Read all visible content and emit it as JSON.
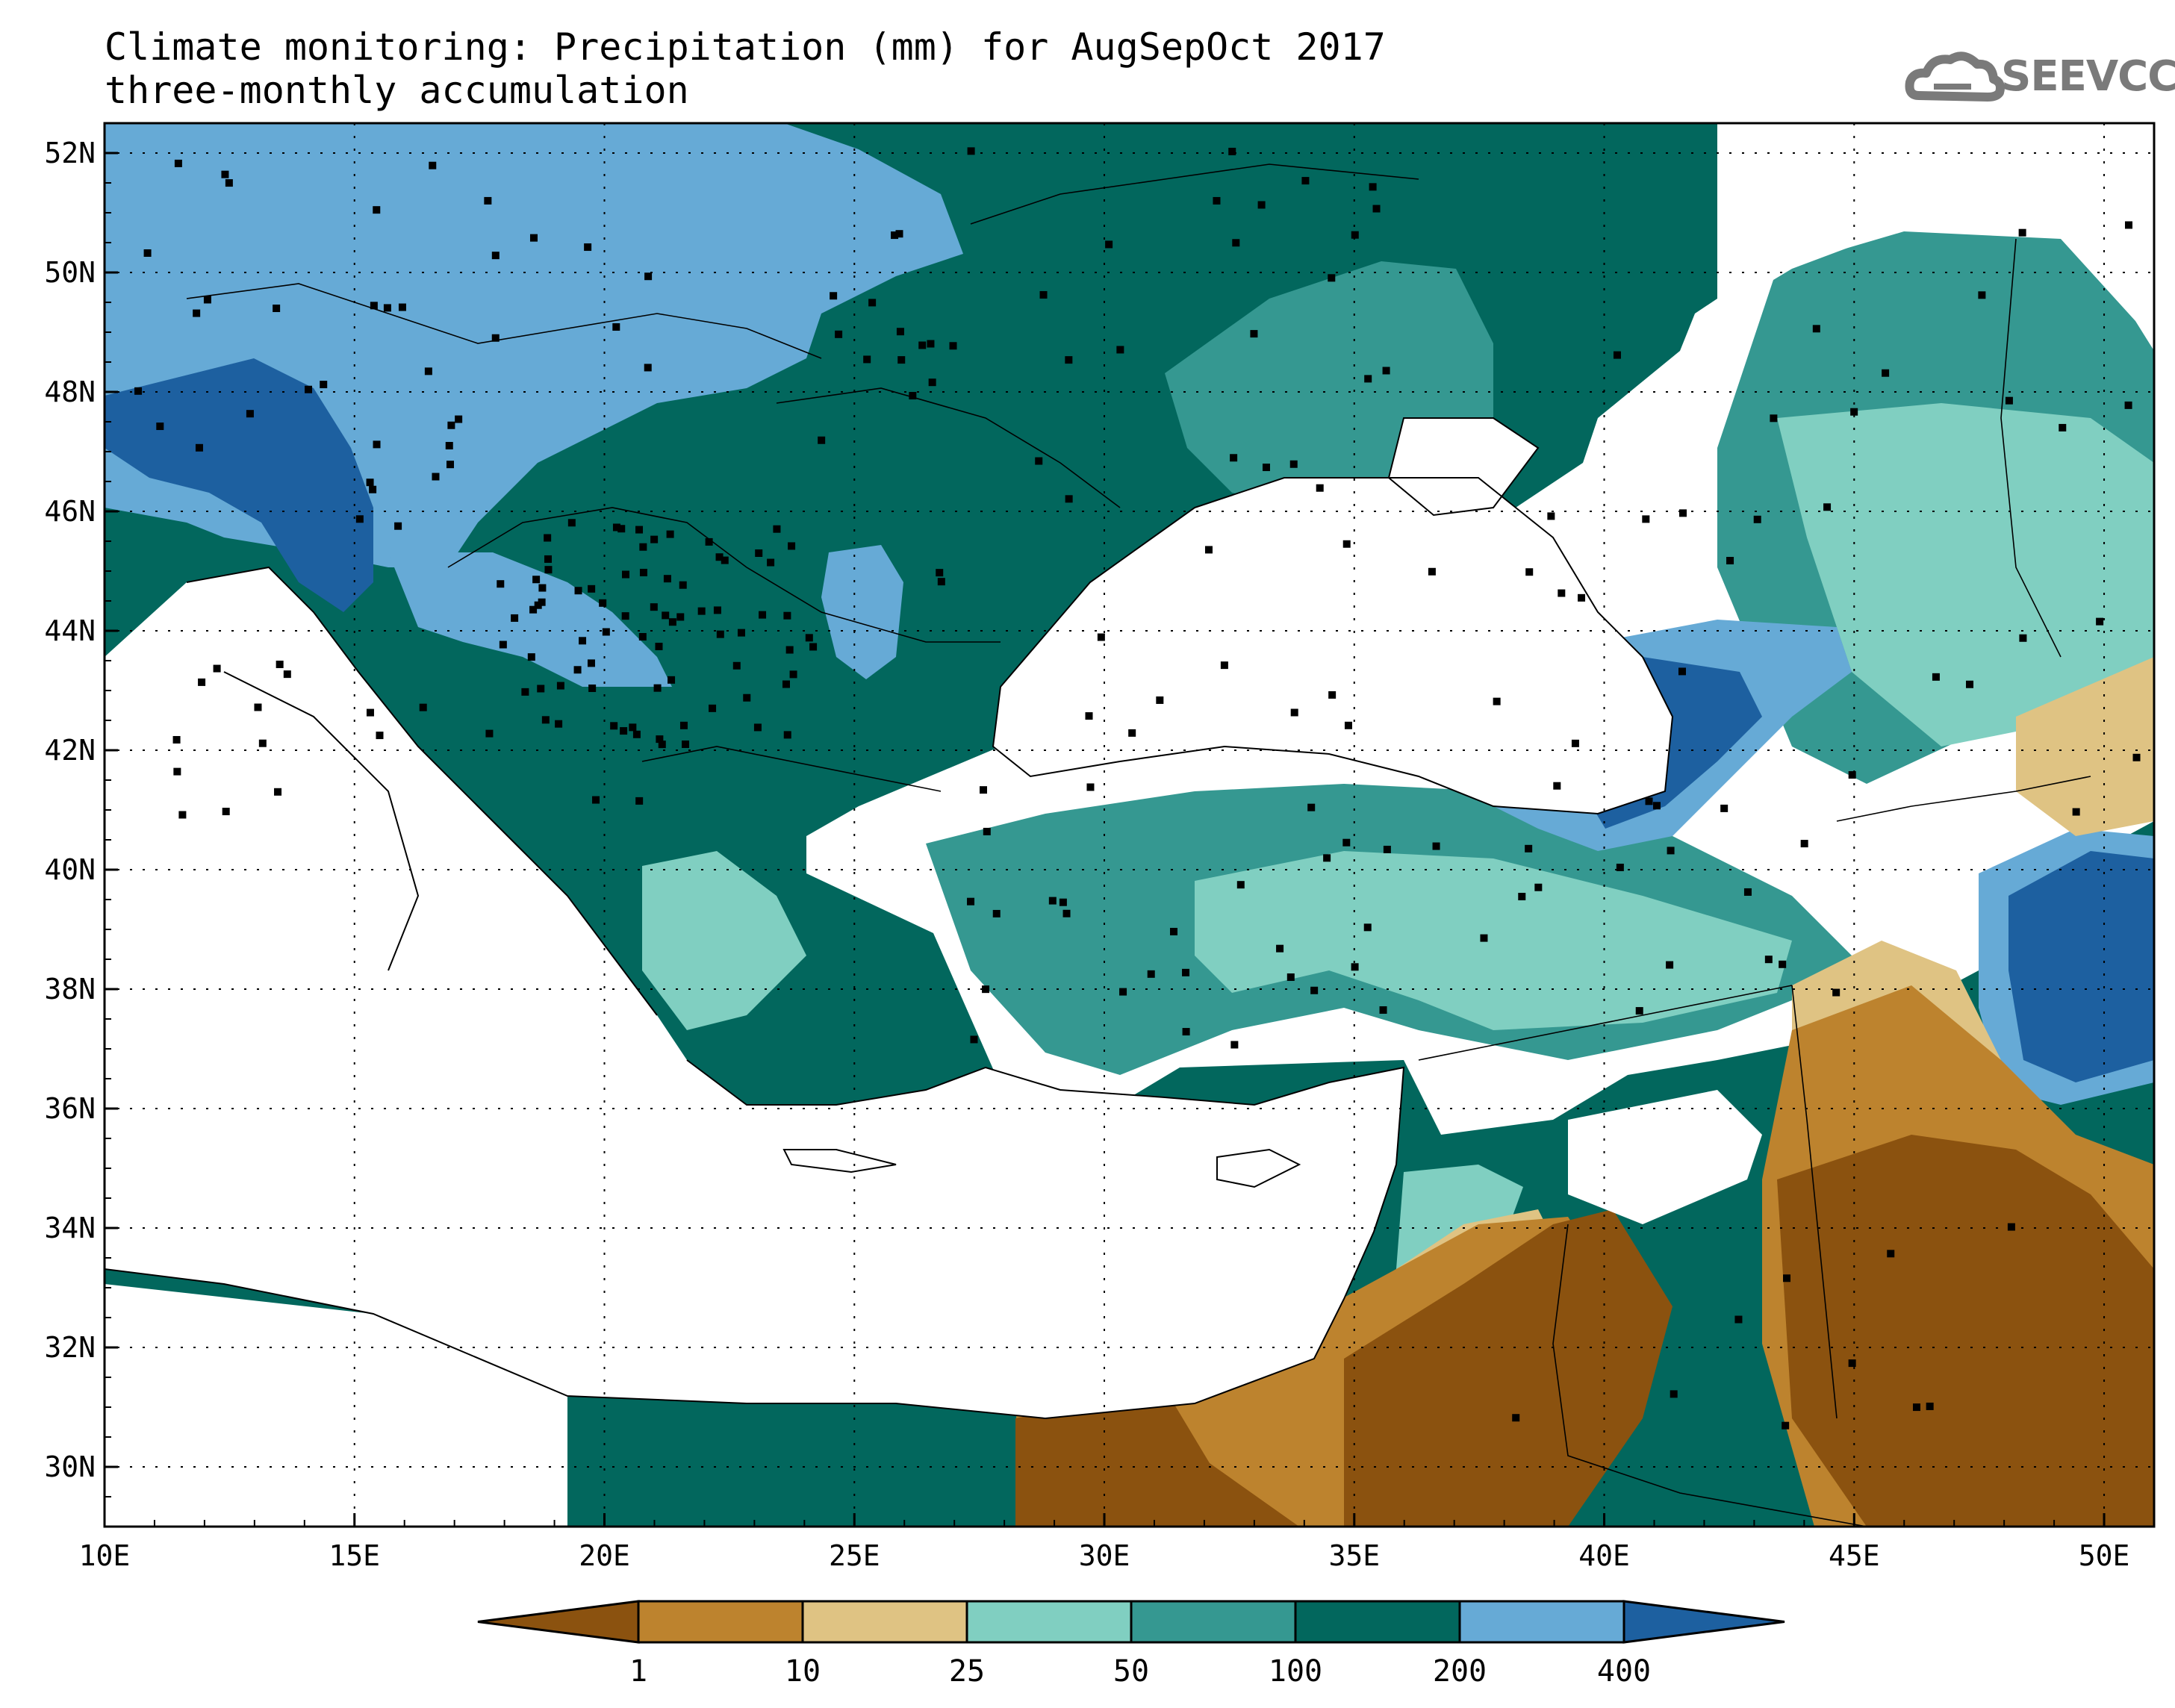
{
  "title": {
    "line1": "Climate monitoring: Precipitation (mm) for AugSepOct 2017",
    "line2": "three-monthly accumulation"
  },
  "logo": {
    "text": "SEEVCCC",
    "icon": "cloud-icon"
  },
  "axes": {
    "lon_labels": [
      "10E",
      "15E",
      "20E",
      "25E",
      "30E",
      "35E",
      "40E",
      "45E",
      "50E"
    ],
    "lat_labels": [
      "52N",
      "50N",
      "48N",
      "46N",
      "44N",
      "42N",
      "40N",
      "38N",
      "36N",
      "34N",
      "32N",
      "30N"
    ]
  },
  "colorbar": {
    "thresholds": [
      "1",
      "10",
      "25",
      "50",
      "100",
      "200",
      "400"
    ],
    "colors": [
      "#8b520f",
      "#bd832e",
      "#dfc383",
      "#80cfc1",
      "#359891",
      "#02675d",
      "#66aad6",
      "#1d60a0"
    ]
  },
  "map": {
    "extent": {
      "lon_min": 10,
      "lon_max": 51,
      "lat_min": 29,
      "lat_max": 52.5
    },
    "background": "#ffffff",
    "station_marker": "black-square"
  }
}
